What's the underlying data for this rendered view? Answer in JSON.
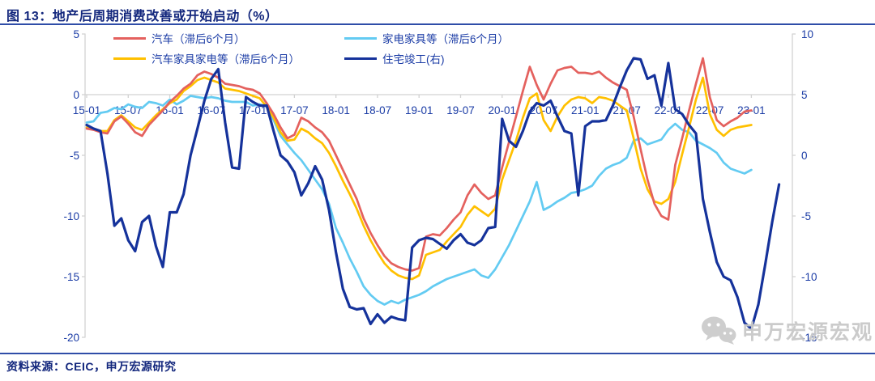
{
  "header": {
    "title": "图 13：地产后周期消费改善或开始启动（%）"
  },
  "footer": {
    "source": "资料来源：CEIC，申万宏源研究"
  },
  "watermark": {
    "label": "申万宏源宏观",
    "icon": "wechat-bubbles-icon"
  },
  "colors": {
    "accent_blue": "#2f4da8",
    "text_blue": "#1c3da6",
    "axis_gray": "#d2d2d2",
    "watermark_gray": "#c9c9c9",
    "series_red": "#e4615e",
    "series_skyblue": "#63cbf2",
    "series_yellow": "#ffc000",
    "series_navy": "#15329b"
  },
  "legend": [
    {
      "label": "汽车（滞后6个月）",
      "color": "#e4615e"
    },
    {
      "label": "家电家具等（滞后6个月）",
      "color": "#63cbf2"
    },
    {
      "label": "汽车家具家电等（滞后6个月）",
      "color": "#ffc000"
    },
    {
      "label": "住宅竣工(右)",
      "color": "#15329b"
    }
  ],
  "chart_data": {
    "type": "line",
    "title": "地产后周期消费改善或开始启动（%）",
    "x_start_month": "2015-01",
    "x_tick_labels": [
      "15-01",
      "15-07",
      "16-01",
      "16-07",
      "17-01",
      "17-07",
      "18-01",
      "18-07",
      "19-01",
      "19-07",
      "20-01",
      "20-07",
      "21-01",
      "21-07",
      "22-01",
      "22-07",
      "23-01"
    ],
    "left_axis": {
      "ticks": [
        5,
        0,
        -5,
        -10,
        -15,
        -20
      ],
      "range": [
        -20,
        5
      ]
    },
    "right_axis": {
      "ticks": [
        10,
        5,
        0,
        -5,
        -10,
        -15
      ],
      "range": [
        -15,
        10
      ]
    },
    "grid": "x-axis line at 0 only",
    "legend_position": "top-inside",
    "series": [
      {
        "name": "汽车（滞后6个月）",
        "axis": "left",
        "color": "#e4615e",
        "values": [
          -2.8,
          -2.9,
          -3.1,
          -3.2,
          -2.2,
          -1.8,
          -2.4,
          -3.1,
          -3.4,
          -2.5,
          -1.9,
          -1.3,
          -0.6,
          -0.1,
          0.5,
          0.9,
          1.6,
          1.9,
          1.7,
          1.4,
          0.9,
          0.8,
          0.7,
          0.5,
          0.4,
          0.1,
          -0.7,
          -1.6,
          -2.7,
          -3.6,
          -3.3,
          -1.9,
          -2.2,
          -2.7,
          -3.1,
          -3.8,
          -5.0,
          -6.2,
          -7.4,
          -8.6,
          -10.2,
          -11.4,
          -12.4,
          -13.3,
          -13.9,
          -14.2,
          -14.4,
          -14.5,
          -14.3,
          -11.7,
          -11.5,
          -11.6,
          -11.0,
          -10.3,
          -9.7,
          -8.3,
          -7.4,
          -8.1,
          -8.6,
          -8.3,
          -6.0,
          -3.9,
          -1.8,
          0.3,
          2.3,
          0.8,
          -0.4,
          0.9,
          2.0,
          2.2,
          2.3,
          1.8,
          1.8,
          1.7,
          1.9,
          1.4,
          1.0,
          0.7,
          0.4,
          -1.8,
          -4.5,
          -7.0,
          -9.0,
          -10.0,
          -10.3,
          -5.8,
          -3.6,
          -1.3,
          0.9,
          3.0,
          -0.2,
          -2.1,
          -2.6,
          -2.2,
          -1.9,
          -1.4,
          -1.3
        ]
      },
      {
        "name": "家电家具等（滞后6个月）",
        "axis": "left",
        "color": "#63cbf2",
        "values": [
          -2.3,
          -2.2,
          -1.5,
          -1.4,
          -1.1,
          -1.2,
          -0.8,
          -1.0,
          -1.1,
          -0.6,
          -0.7,
          -0.9,
          -0.4,
          -0.8,
          -0.5,
          -0.1,
          -0.2,
          -0.3,
          -0.2,
          -0.3,
          -0.5,
          -0.6,
          -0.6,
          -0.6,
          -0.9,
          -0.8,
          -1.0,
          -2.1,
          -3.4,
          -4.1,
          -4.8,
          -5.4,
          -6.2,
          -7.0,
          -7.8,
          -9.0,
          -11.0,
          -12.2,
          -13.5,
          -14.6,
          -15.8,
          -16.5,
          -17.0,
          -17.3,
          -17.0,
          -17.2,
          -16.9,
          -16.7,
          -16.5,
          -16.2,
          -15.8,
          -15.5,
          -15.2,
          -15.0,
          -14.8,
          -14.6,
          -14.4,
          -14.9,
          -15.1,
          -14.4,
          -13.4,
          -12.4,
          -11.2,
          -10.0,
          -8.8,
          -7.2,
          -9.5,
          -9.2,
          -8.8,
          -8.5,
          -8.1,
          -8.0,
          -7.8,
          -7.5,
          -6.7,
          -6.1,
          -5.8,
          -5.6,
          -5.2,
          -3.8,
          -3.6,
          -4.1,
          -3.9,
          -3.7,
          -2.9,
          -2.4,
          -2.9,
          -3.1,
          -3.8,
          -4.1,
          -4.4,
          -4.8,
          -5.6,
          -6.1,
          -6.3,
          -6.5,
          -6.2
        ]
      },
      {
        "name": "汽车家具家电等（滞后6个月）",
        "axis": "left",
        "color": "#ffc000",
        "values": [
          -2.7,
          -2.8,
          -3.0,
          -3.0,
          -2.1,
          -1.7,
          -2.2,
          -2.7,
          -2.9,
          -2.3,
          -1.7,
          -1.2,
          -0.7,
          -0.4,
          0.3,
          0.7,
          1.2,
          1.4,
          1.2,
          1.0,
          0.5,
          0.4,
          0.3,
          0.1,
          -0.1,
          -0.3,
          -1.0,
          -1.9,
          -3.1,
          -3.8,
          -3.7,
          -2.8,
          -3.1,
          -3.6,
          -4.0,
          -4.8,
          -5.9,
          -7.1,
          -8.2,
          -9.4,
          -10.8,
          -12.0,
          -13.0,
          -13.9,
          -14.5,
          -14.9,
          -15.1,
          -15.2,
          -14.9,
          -13.2,
          -13.0,
          -12.8,
          -12.1,
          -11.5,
          -10.9,
          -9.9,
          -9.2,
          -9.6,
          -10.0,
          -9.4,
          -7.0,
          -5.4,
          -3.8,
          -1.9,
          -0.3,
          0.1,
          -2.1,
          -3.0,
          -1.8,
          -0.9,
          -0.4,
          -0.2,
          -0.3,
          -0.7,
          -0.2,
          -0.3,
          -0.5,
          -0.9,
          -1.3,
          -3.6,
          -6.1,
          -7.8,
          -8.8,
          -9.0,
          -8.6,
          -7.2,
          -4.9,
          -2.7,
          -0.4,
          1.4,
          -1.6,
          -2.9,
          -3.4,
          -2.9,
          -2.7,
          -2.6,
          -2.5
        ]
      },
      {
        "name": "住宅竣工(右)",
        "axis": "right",
        "color": "#15329b",
        "values": [
          2.5,
          2.2,
          2.0,
          -1.5,
          -5.8,
          -5.2,
          -7.0,
          -7.9,
          -5.5,
          -5.0,
          -7.5,
          -9.2,
          -4.7,
          -4.7,
          -3.2,
          0.0,
          2.2,
          4.5,
          6.3,
          7.1,
          2.7,
          -1.0,
          -1.1,
          4.8,
          4.4,
          4.1,
          4.1,
          2.0,
          0.0,
          -0.5,
          -1.4,
          -3.3,
          -2.3,
          -0.9,
          -2.0,
          -4.5,
          -8.0,
          -11.0,
          -12.5,
          -12.7,
          -12.6,
          -13.9,
          -13.1,
          -13.8,
          -13.3,
          -13.5,
          -13.6,
          -7.6,
          -7.0,
          -6.8,
          -6.9,
          -7.3,
          -7.7,
          -7.0,
          -6.5,
          -7.2,
          -7.4,
          -7.0,
          -6.0,
          -5.9,
          3.0,
          1.2,
          0.7,
          2.0,
          3.6,
          4.3,
          4.1,
          4.5,
          3.2,
          2.0,
          1.8,
          -3.3,
          2.4,
          2.8,
          2.8,
          2.9,
          4.1,
          5.6,
          7.0,
          8.0,
          7.9,
          6.3,
          6.6,
          4.1,
          7.6,
          3.8,
          3.4,
          2.5,
          1.8,
          -3.6,
          -6.3,
          -8.8,
          -10.0,
          -10.3,
          -11.7,
          -13.8,
          -14.3,
          -12.3,
          -9.0,
          -5.5,
          -2.4
        ]
      }
    ]
  }
}
